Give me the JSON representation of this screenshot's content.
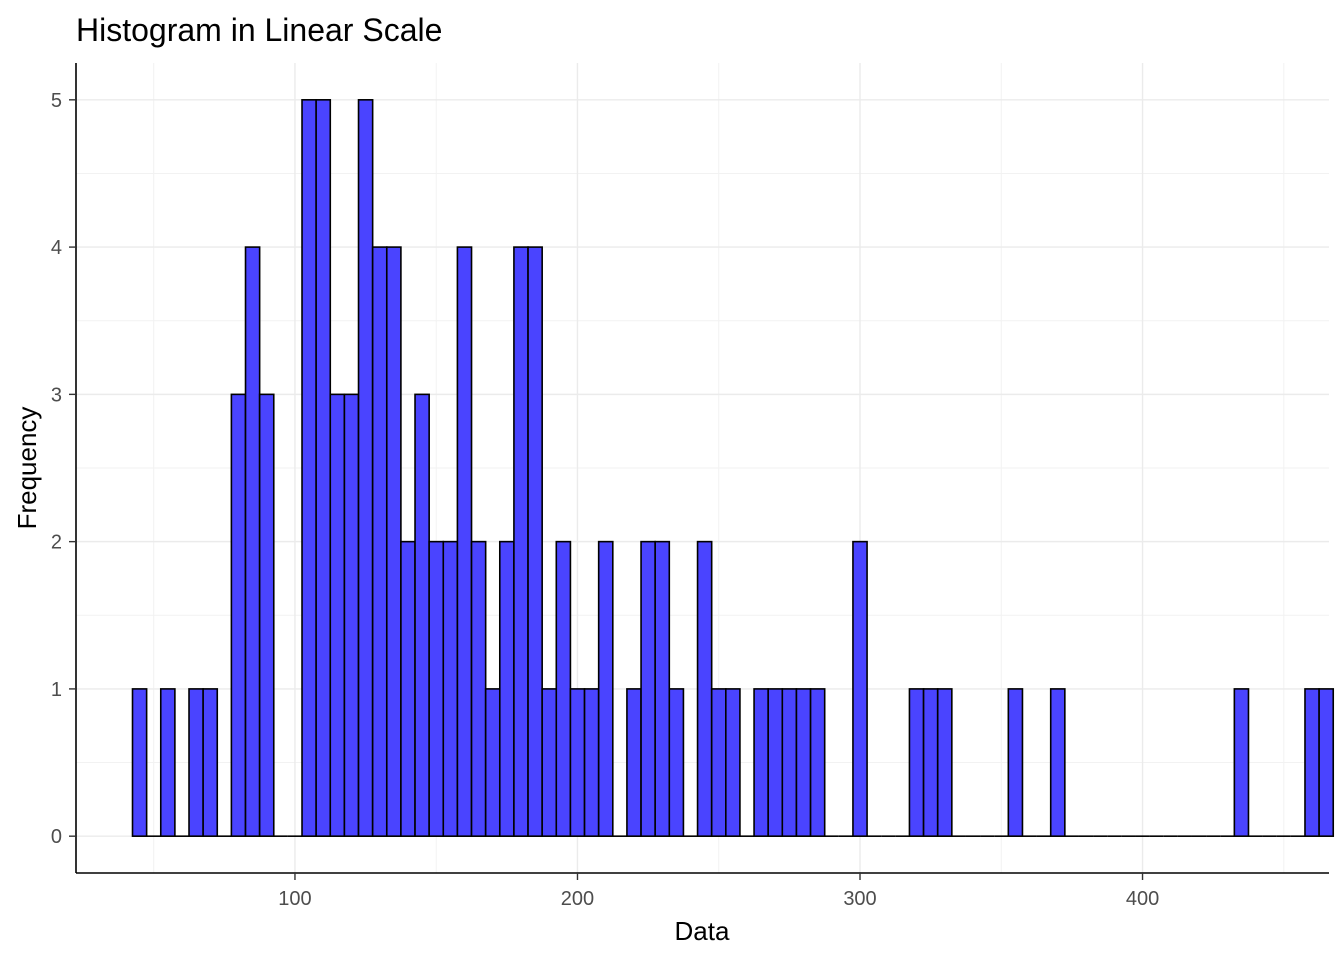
{
  "chart_data": {
    "type": "bar",
    "title": "Histogram in Linear Scale",
    "xlabel": "Data",
    "ylabel": "Frequency",
    "binwidth": 5,
    "x_start": 42.5,
    "counts": [
      1,
      0,
      1,
      0,
      1,
      1,
      0,
      3,
      4,
      3,
      0,
      0,
      5,
      5,
      3,
      3,
      5,
      4,
      4,
      2,
      3,
      2,
      2,
      4,
      2,
      1,
      2,
      4,
      4,
      1,
      2,
      1,
      1,
      2,
      0,
      1,
      2,
      2,
      1,
      0,
      2,
      1,
      1,
      0,
      1,
      1,
      1,
      1,
      1,
      0,
      0,
      2,
      0,
      0,
      0,
      1,
      1,
      1,
      0,
      0,
      0,
      0,
      1,
      0,
      0,
      1,
      0,
      0,
      0,
      0,
      0,
      0,
      0,
      0,
      0,
      0,
      0,
      0,
      1,
      0,
      0,
      0,
      0,
      1,
      1
    ],
    "xlim": [
      22.5,
      466
    ],
    "ylim": [
      -0.25,
      5.25
    ],
    "x_ticks": [
      100,
      200,
      300,
      400
    ],
    "y_ticks": [
      0,
      1,
      2,
      3,
      4,
      5
    ],
    "grid": true,
    "bar_fill": "#4a44ff",
    "bar_stroke": "#000000"
  }
}
